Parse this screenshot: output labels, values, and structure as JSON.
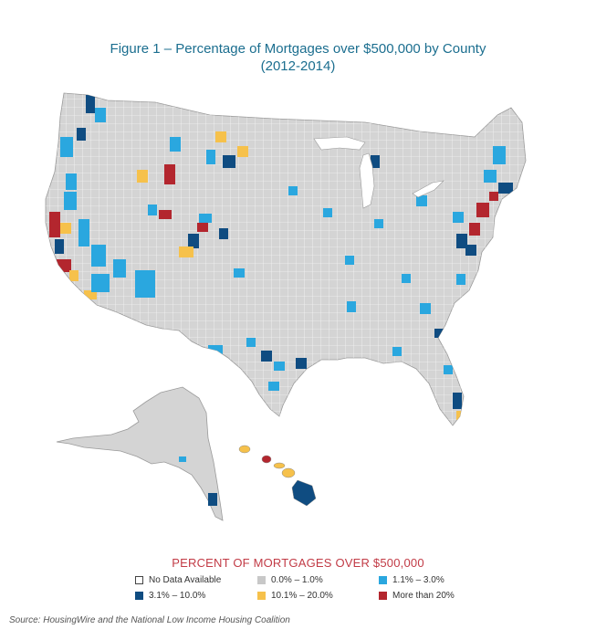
{
  "title": {
    "line1": "Figure 1 – Percentage of Mortgages over $500,000 by County",
    "line2": "(2012-2014)"
  },
  "legend": {
    "title": "PERCENT OF MORTGAGES OVER $500,000",
    "items": [
      {
        "label": "No Data Available",
        "color": "#ffffff"
      },
      {
        "label": "0.0% – 1.0%",
        "color": "#c8c8c8"
      },
      {
        "label": "1.1% – 3.0%",
        "color": "#2aa7df"
      },
      {
        "label": "3.1% – 10.0%",
        "color": "#0f4c81"
      },
      {
        "label": "10.1% – 20.0%",
        "color": "#f6c14b"
      },
      {
        "label": "More than 20%",
        "color": "#b3262e"
      }
    ]
  },
  "source": "Source: HousingWire and the National Low Income Housing Coalition"
}
